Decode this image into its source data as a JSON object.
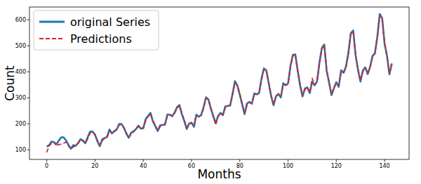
{
  "chart_data": {
    "type": "line",
    "x_label": "Months",
    "y_label": "Count",
    "x": [
      0,
      1,
      2,
      3,
      4,
      5,
      6,
      7,
      8,
      9,
      10,
      11,
      12,
      13,
      14,
      15,
      16,
      17,
      18,
      19,
      20,
      21,
      22,
      23,
      24,
      25,
      26,
      27,
      28,
      29,
      30,
      31,
      32,
      33,
      34,
      35,
      36,
      37,
      38,
      39,
      40,
      41,
      42,
      43,
      44,
      45,
      46,
      47,
      48,
      49,
      50,
      51,
      52,
      53,
      54,
      55,
      56,
      57,
      58,
      59,
      60,
      61,
      62,
      63,
      64,
      65,
      66,
      67,
      68,
      69,
      70,
      71,
      72,
      73,
      74,
      75,
      76,
      77,
      78,
      79,
      80,
      81,
      82,
      83,
      84,
      85,
      86,
      87,
      88,
      89,
      90,
      91,
      92,
      93,
      94,
      95,
      96,
      97,
      98,
      99,
      100,
      101,
      102,
      103,
      104,
      105,
      106,
      107,
      108,
      109,
      110,
      111,
      112,
      113,
      114,
      115,
      116,
      117,
      118,
      119,
      120,
      121,
      122,
      123,
      124,
      125,
      126,
      127,
      128,
      129,
      130,
      131,
      132,
      133,
      134,
      135,
      136,
      137,
      138,
      139,
      140,
      141,
      142,
      143
    ],
    "series": [
      {
        "name": "original Series",
        "color": "#1f77b4",
        "line_style": "solid",
        "values": [
          112,
          118,
          132,
          129,
          121,
          135,
          148,
          148,
          136,
          119,
          104,
          118,
          115,
          126,
          141,
          135,
          125,
          149,
          170,
          170,
          158,
          133,
          114,
          140,
          145,
          150,
          178,
          163,
          172,
          178,
          199,
          199,
          184,
          162,
          146,
          166,
          171,
          180,
          193,
          181,
          183,
          218,
          230,
          242,
          209,
          191,
          172,
          194,
          196,
          196,
          236,
          235,
          229,
          243,
          264,
          272,
          237,
          211,
          180,
          201,
          204,
          188,
          235,
          227,
          234,
          264,
          302,
          293,
          259,
          229,
          203,
          229,
          242,
          233,
          267,
          269,
          270,
          315,
          364,
          347,
          312,
          274,
          237,
          278,
          284,
          277,
          317,
          313,
          318,
          374,
          413,
          405,
          355,
          306,
          271,
          306,
          315,
          301,
          356,
          348,
          355,
          422,
          465,
          467,
          404,
          347,
          305,
          336,
          340,
          318,
          362,
          348,
          363,
          435,
          491,
          505,
          404,
          359,
          310,
          337,
          360,
          342,
          406,
          396,
          420,
          472,
          548,
          559,
          463,
          407,
          362,
          405,
          417,
          391,
          419,
          461,
          472,
          535,
          622,
          606,
          508,
          461,
          390,
          432
        ]
      },
      {
        "name": "Predictions",
        "color": "#d62728",
        "line_style": "dashed",
        "values": [
          90,
          115,
          125,
          130,
          115,
          120,
          122,
          125,
          130,
          115,
          105,
          110,
          118,
          124,
          138,
          137,
          128,
          142,
          165,
          168,
          160,
          136,
          118,
          135,
          145,
          148,
          172,
          165,
          168,
          180,
          195,
          198,
          186,
          165,
          148,
          160,
          170,
          178,
          190,
          185,
          182,
          212,
          228,
          238,
          212,
          194,
          175,
          190,
          195,
          198,
          230,
          234,
          230,
          240,
          260,
          270,
          240,
          215,
          185,
          198,
          205,
          192,
          230,
          228,
          232,
          260,
          298,
          295,
          262,
          232,
          195,
          228,
          240,
          235,
          262,
          268,
          272,
          310,
          358,
          348,
          315,
          278,
          240,
          272,
          283,
          278,
          312,
          315,
          318,
          368,
          410,
          405,
          358,
          310,
          275,
          302,
          314,
          303,
          350,
          350,
          352,
          418,
          462,
          466,
          405,
          350,
          308,
          332,
          340,
          320,
          375,
          350,
          360,
          430,
          488,
          503,
          408,
          360,
          312,
          335,
          358,
          345,
          400,
          398,
          415,
          470,
          545,
          556,
          465,
          410,
          365,
          400,
          415,
          395,
          418,
          455,
          470,
          530,
          615,
          608,
          510,
          462,
          392,
          430
        ]
      }
    ],
    "xlim": [
      -7.15,
      150.15
    ],
    "xticks": [
      0,
      20,
      40,
      60,
      80,
      100,
      120,
      140
    ],
    "ylim": [
      63,
      649
    ],
    "yticks": [
      100,
      200,
      300,
      400,
      500,
      600
    ],
    "grid": false,
    "legend": "upper left"
  }
}
